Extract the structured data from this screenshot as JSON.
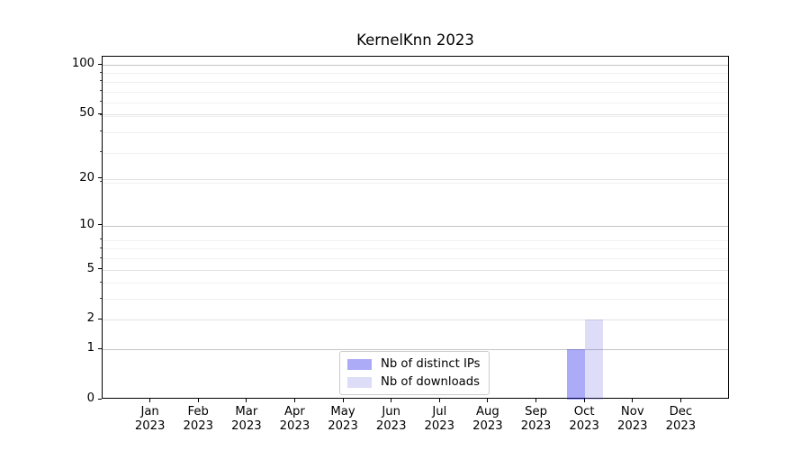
{
  "title": "KernelKnn 2023",
  "chart_data": {
    "type": "bar",
    "title": "KernelKnn 2023",
    "year_label": "2023",
    "months": [
      "Jan",
      "Feb",
      "Mar",
      "Apr",
      "May",
      "Jun",
      "Jul",
      "Aug",
      "Sep",
      "Oct",
      "Nov",
      "Dec"
    ],
    "categories": [
      "Jan 2023",
      "Feb 2023",
      "Mar 2023",
      "Apr 2023",
      "May 2023",
      "Jun 2023",
      "Jul 2023",
      "Aug 2023",
      "Sep 2023",
      "Oct 2023",
      "Nov 2023",
      "Dec 2023"
    ],
    "series": [
      {
        "name": "Nb of distinct IPs",
        "values": [
          0,
          0,
          0,
          0,
          0,
          0,
          0,
          0,
          0,
          1,
          0,
          0
        ],
        "color": "#0d0deb",
        "alpha": 0.35,
        "color_on_white": "#aaaaf8"
      },
      {
        "name": "Nb of downloads",
        "values": [
          0,
          0,
          0,
          0,
          0,
          0,
          0,
          0,
          0,
          2,
          0,
          0
        ],
        "color": "#5555dc",
        "alpha": 0.2,
        "color_on_white": "#ddddf8"
      }
    ],
    "yscale": "log1p",
    "ylim": [
      0,
      112
    ],
    "y_ticks": [
      0,
      1,
      2,
      5,
      10,
      20,
      50,
      100
    ],
    "y_minor_ticks": [
      3,
      4,
      6,
      7,
      8,
      19,
      29,
      39,
      49,
      59,
      69,
      79,
      89
    ],
    "decade_ticks": [
      1,
      10,
      100
    ],
    "grid": true,
    "legend_position": "lower center",
    "colors": {
      "grid_major_decade": "#c4c4c4",
      "grid_major": "#e2e2e2",
      "grid_minor": "#f0f0f0",
      "axis": "#000000",
      "background": "#ffffff"
    }
  }
}
